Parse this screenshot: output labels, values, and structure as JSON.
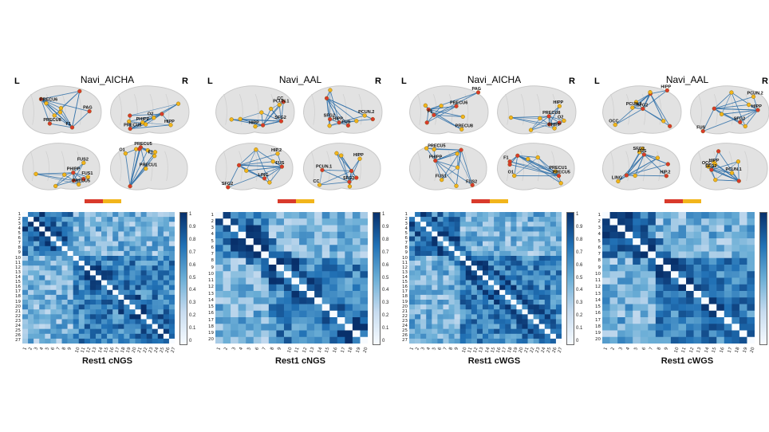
{
  "panels": [
    {
      "title": "Navi_AICHA",
      "left_label": "L",
      "right_label": "R",
      "xlabel": "Rest1 cNGS",
      "size": 27,
      "colorbar_ticks": [
        "1",
        "0.9",
        "0.8",
        "0.7",
        "0.6",
        "0.5",
        "0.4",
        "0.3",
        "0.2",
        "0.1",
        "0"
      ],
      "node_labels": [
        "F1",
        "PRECU6",
        "PAG",
        "PRECU8",
        "O2",
        "HIPP",
        "PHIPP",
        "FUS1",
        "FUS2",
        "PRECU5",
        "PRECU1",
        "O1"
      ]
    },
    {
      "title": "Navi_AAL",
      "left_label": "L",
      "right_label": "R",
      "xlabel": "Rest1 cNGS",
      "size": 20,
      "colorbar_ticks": [
        "1",
        "0.9",
        "0.8",
        "0.7",
        "0.6",
        "0.5",
        "0.4",
        "0.3",
        "0.2",
        "0.1",
        "0"
      ],
      "node_labels": [
        "SFG2",
        "PCUN.1",
        "CC",
        "HIPP",
        "SFG2",
        "PCUN.2",
        "FUS",
        "LING",
        "HIP.2"
      ]
    },
    {
      "title": "Navi_AICHA",
      "left_label": "L",
      "right_label": "R",
      "xlabel": "Rest1 cWGS",
      "size": 27,
      "colorbar_ticks": [
        "1",
        "0.9",
        "0.8",
        "0.7",
        "0.6",
        "0.5",
        "0.4",
        "0.3",
        "0.2",
        "0.1",
        "0"
      ],
      "node_labels": [
        "F1",
        "PRECU6",
        "PAG",
        "PRECU8",
        "O2",
        "HIPP",
        "PHIPP",
        "FUS1",
        "FUS2",
        "PRECU5",
        "PRECU1",
        "O1"
      ]
    },
    {
      "title": "Navi_AAL",
      "left_label": "L",
      "right_label": "R",
      "xlabel": "Rest1 cWGS",
      "size": 20,
      "colorbar_ticks": [
        "0.9",
        "0.8",
        "0.7",
        "0.6",
        "0.5",
        "0.4",
        "0.3",
        "0.2",
        "0.1",
        "0"
      ],
      "node_labels": [
        "SFG2",
        "PCUN.1",
        "OCC",
        "HIPP",
        "SFG2",
        "PCUN.2",
        "FUS",
        "LING",
        "HIP.2"
      ]
    }
  ],
  "colors": {
    "matrix_dark": "#08306b",
    "matrix_light": "#f7fbff",
    "node_red": "#d93a2b",
    "node_yellow": "#f2b51b",
    "edge_blue": "#2f6fa8",
    "brain_fill": "#e2e2e2"
  }
}
